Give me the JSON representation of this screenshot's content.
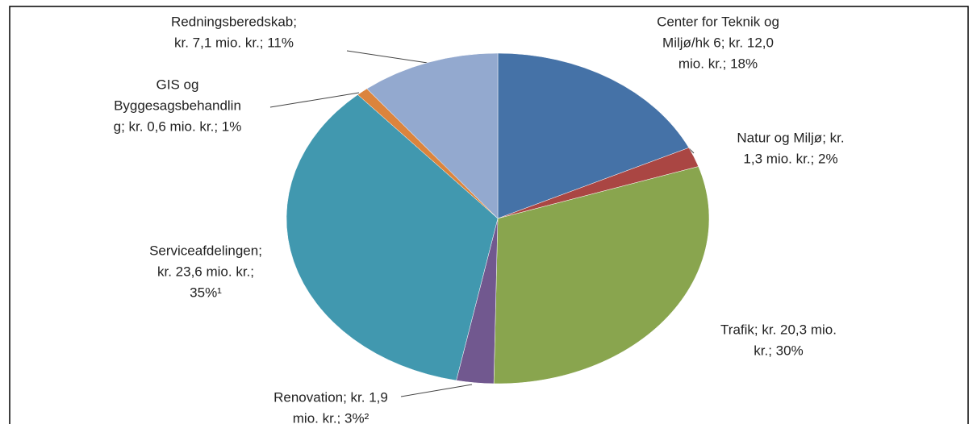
{
  "chart_data": {
    "type": "pie",
    "values": [
      12.0,
      1.3,
      20.3,
      1.9,
      23.6,
      0.6,
      7.1
    ],
    "value_labels": [
      [
        "Center for Teknik og",
        "Miljø/hk 6; kr. 12,0",
        "mio. kr.; 18%"
      ],
      [
        "Natur og Miljø; kr.",
        "1,3 mio. kr.; 2%"
      ],
      [
        "Trafik; kr. 20,3 mio.",
        "kr.; 30%"
      ],
      [
        "Renovation; kr. 1,9",
        "mio. kr.; 3%²"
      ],
      [
        "Serviceafdelingen;",
        "kr. 23,6 mio. kr.;",
        "35%¹"
      ],
      [
        "GIS og",
        "Byggesagsbehandlin",
        "g; kr. 0,6 mio. kr.; 1%"
      ],
      [
        "Redningsberedskab;",
        "kr. 7,1 mio. kr.; 11%"
      ]
    ],
    "colors": [
      "#4572a7",
      "#aa4643",
      "#89a54e",
      "#71588f",
      "#4198af",
      "#db843d",
      "#93a9cf"
    ]
  }
}
